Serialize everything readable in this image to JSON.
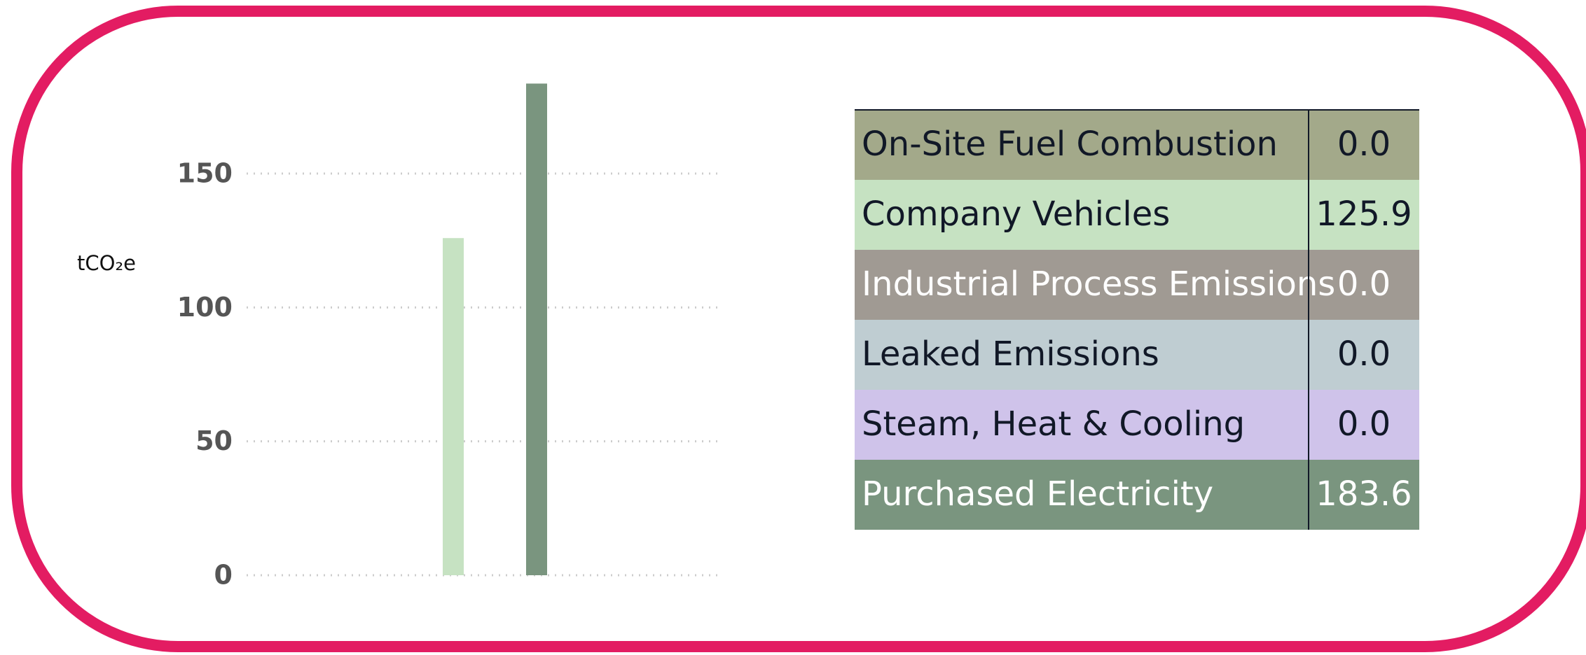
{
  "chart_data": {
    "type": "stacked_bar",
    "y_label": "tCO₂e",
    "categories": [
      null,
      null
    ],
    "ylim": [
      0,
      185
    ],
    "yticks": [
      0,
      50,
      100,
      150
    ],
    "grid": true,
    "series": [
      {
        "name": "On-Site Fuel Combustion",
        "color": "#a3a98a",
        "label_color": "#111827",
        "values": [
          0,
          null
        ],
        "value_labels": [
          "0.0",
          null
        ]
      },
      {
        "name": "Company Vehicles",
        "color": "#c6e2c2",
        "label_color": "#111827",
        "values": [
          125.9,
          null
        ]
      },
      {
        "name": "Industrial Process Emissions",
        "color": "#a09a93",
        "label_color": "#ffffff",
        "values": [
          0,
          null
        ],
        "value_labels": [
          "0.0",
          null
        ]
      },
      {
        "name": "Leaked Emissions",
        "color": "#bfcdd2",
        "label_color": "#111827",
        "values": [
          0,
          null
        ],
        "value_labels": [
          "0.0",
          null
        ]
      },
      {
        "name": "Steam, Heat & Cooling",
        "color": "#cfc3ea",
        "label_color": "#111827",
        "values": [
          null,
          0
        ],
        "value_labels": [
          null,
          "0.0"
        ]
      },
      {
        "name": "Purchased Electricity",
        "color": "#7a957f",
        "label_color": "#ffffff",
        "values": [
          null,
          183.6
        ]
      }
    ]
  }
}
